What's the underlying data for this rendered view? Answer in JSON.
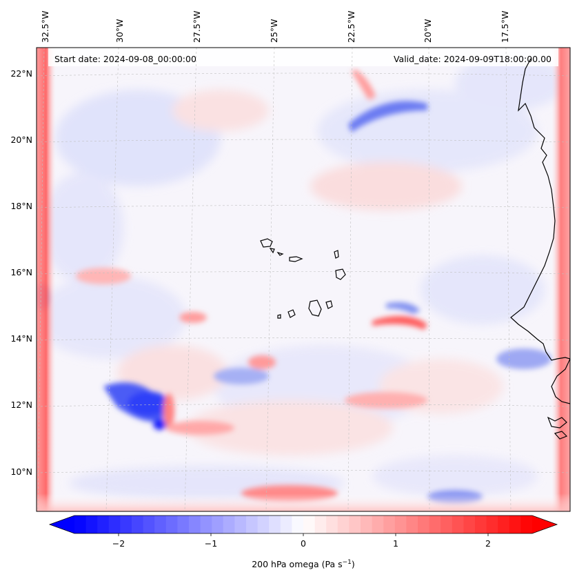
{
  "map": {
    "header": {
      "start_date": "Start date: 2024-09-08_00:00:00",
      "valid_date": "Valid_date: 2024-09-09T18:00:00.00"
    },
    "lon_labels": [
      "32.5°W",
      "30°W",
      "27.5°W",
      "25°W",
      "22.5°W",
      "20°W",
      "17.5°W"
    ],
    "lat_labels": [
      "22°N",
      "20°N",
      "18°N",
      "16°N",
      "14°N",
      "12°N",
      "10°N"
    ],
    "lat_values": [
      22,
      20,
      18,
      16,
      14,
      12,
      10
    ],
    "lon_values": [
      -32.5,
      -30,
      -27.5,
      -25,
      -22.5,
      -20,
      -17.5
    ],
    "field_name": "200 hPa omega",
    "colors": {
      "negative": "#0000ff",
      "zero": "#ffffff",
      "positive": "#ff0000",
      "coastline": "#000000",
      "gridline": "#b0b0b0"
    }
  },
  "colorbar": {
    "ticks": [
      "−2",
      "−1",
      "0",
      "1",
      "2"
    ],
    "tick_values": [
      -2,
      -1,
      0,
      1,
      2
    ],
    "range": [
      -2.75,
      2.75
    ],
    "label_main": "200 hPa omega (Pa s",
    "label_exp": "−1",
    "label_close": ")"
  }
}
